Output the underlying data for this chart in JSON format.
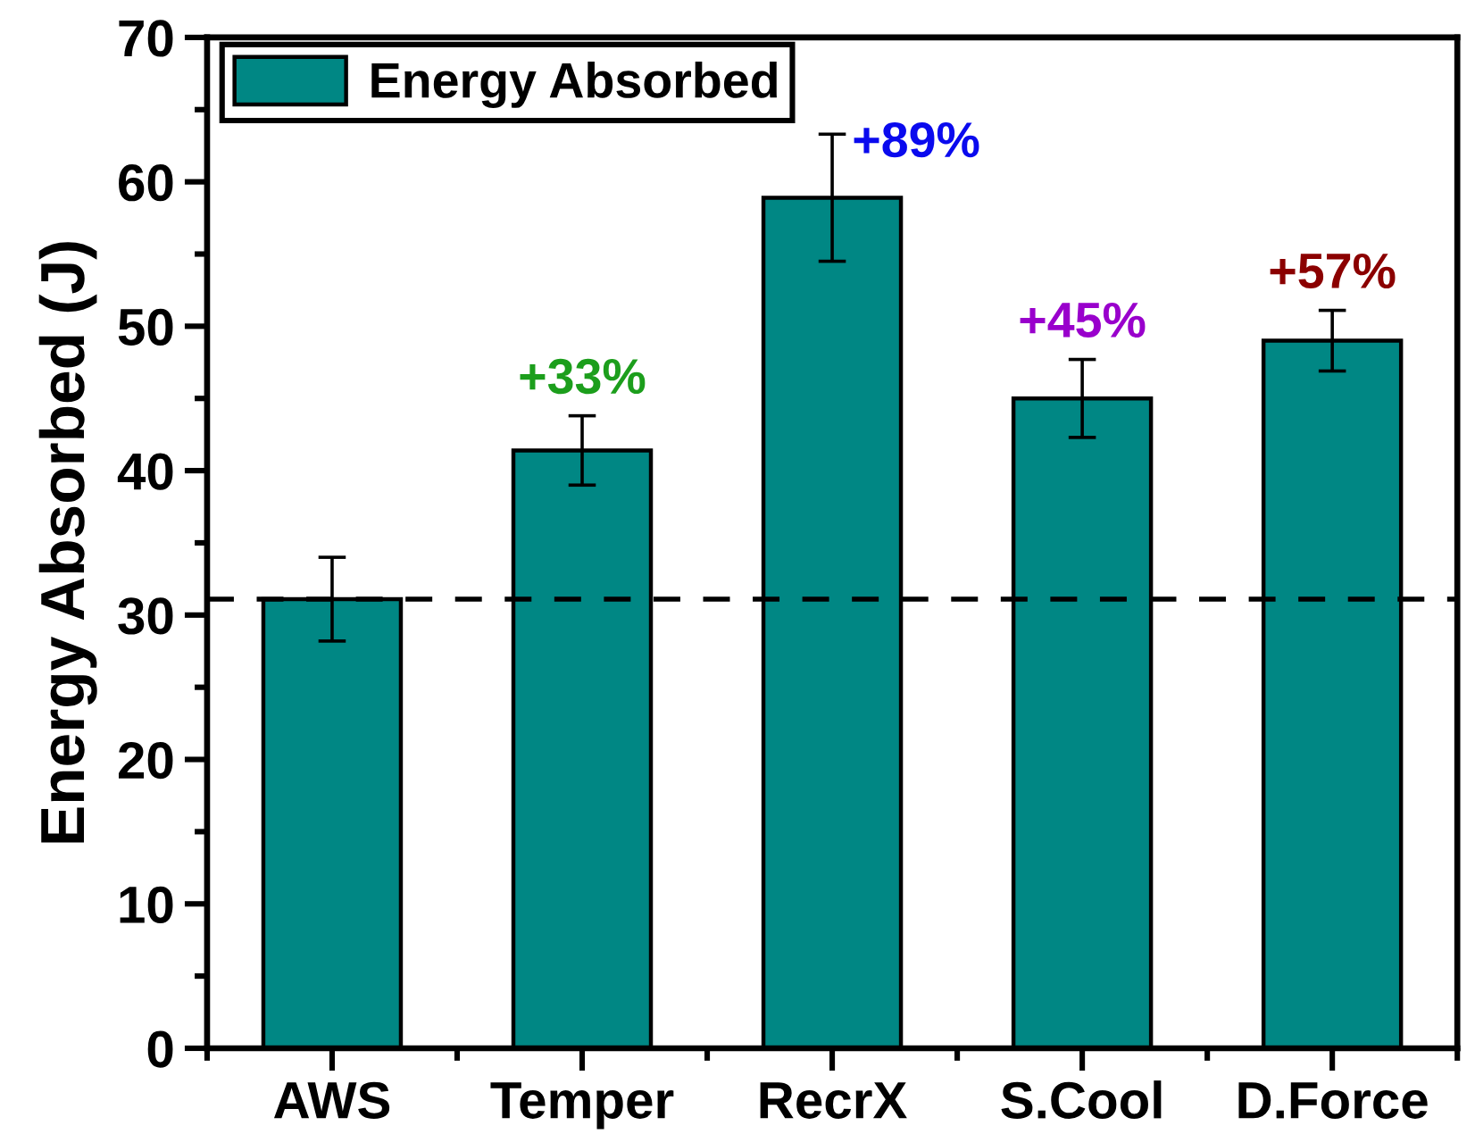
{
  "chart_data": {
    "type": "bar",
    "categories": [
      "AWS",
      "Temper",
      "RecrX",
      "S.Cool",
      "D.Force"
    ],
    "series": [
      {
        "name": "Energy Absorbed",
        "color": "#008784",
        "values": [
          31.1,
          41.4,
          58.9,
          45.0,
          49.0
        ],
        "errors": [
          2.9,
          2.4,
          4.4,
          2.7,
          2.1
        ]
      }
    ],
    "ylabel": "Energy Absorbed (J)",
    "ylim": [
      0,
      70
    ],
    "yticks": [
      0,
      {
        "value": 5,
        "label": null
      },
      10,
      {
        "value": 15,
        "label": null
      },
      20,
      {
        "value": 25,
        "label": null
      },
      30,
      {
        "value": 35,
        "label": null
      },
      40,
      {
        "value": 45,
        "label": null
      },
      50,
      {
        "value": 55,
        "label": null
      },
      60,
      {
        "value": 65,
        "label": null
      },
      70
    ],
    "ref_lines": [
      {
        "axis": "y",
        "value": 31.1,
        "color": "#000000",
        "line_style": "dashed"
      }
    ],
    "annotations": [
      {
        "text": "+33%",
        "x": "Temper",
        "y": 41.4
      },
      {
        "text": "+89%",
        "x": "RecrX",
        "y": 58.9
      },
      {
        "text": "+45%",
        "x": "S.Cool",
        "y": 45.0
      },
      {
        "text": "+57%",
        "x": "D.Force",
        "y": 49.0
      }
    ],
    "legend": "top left"
  }
}
